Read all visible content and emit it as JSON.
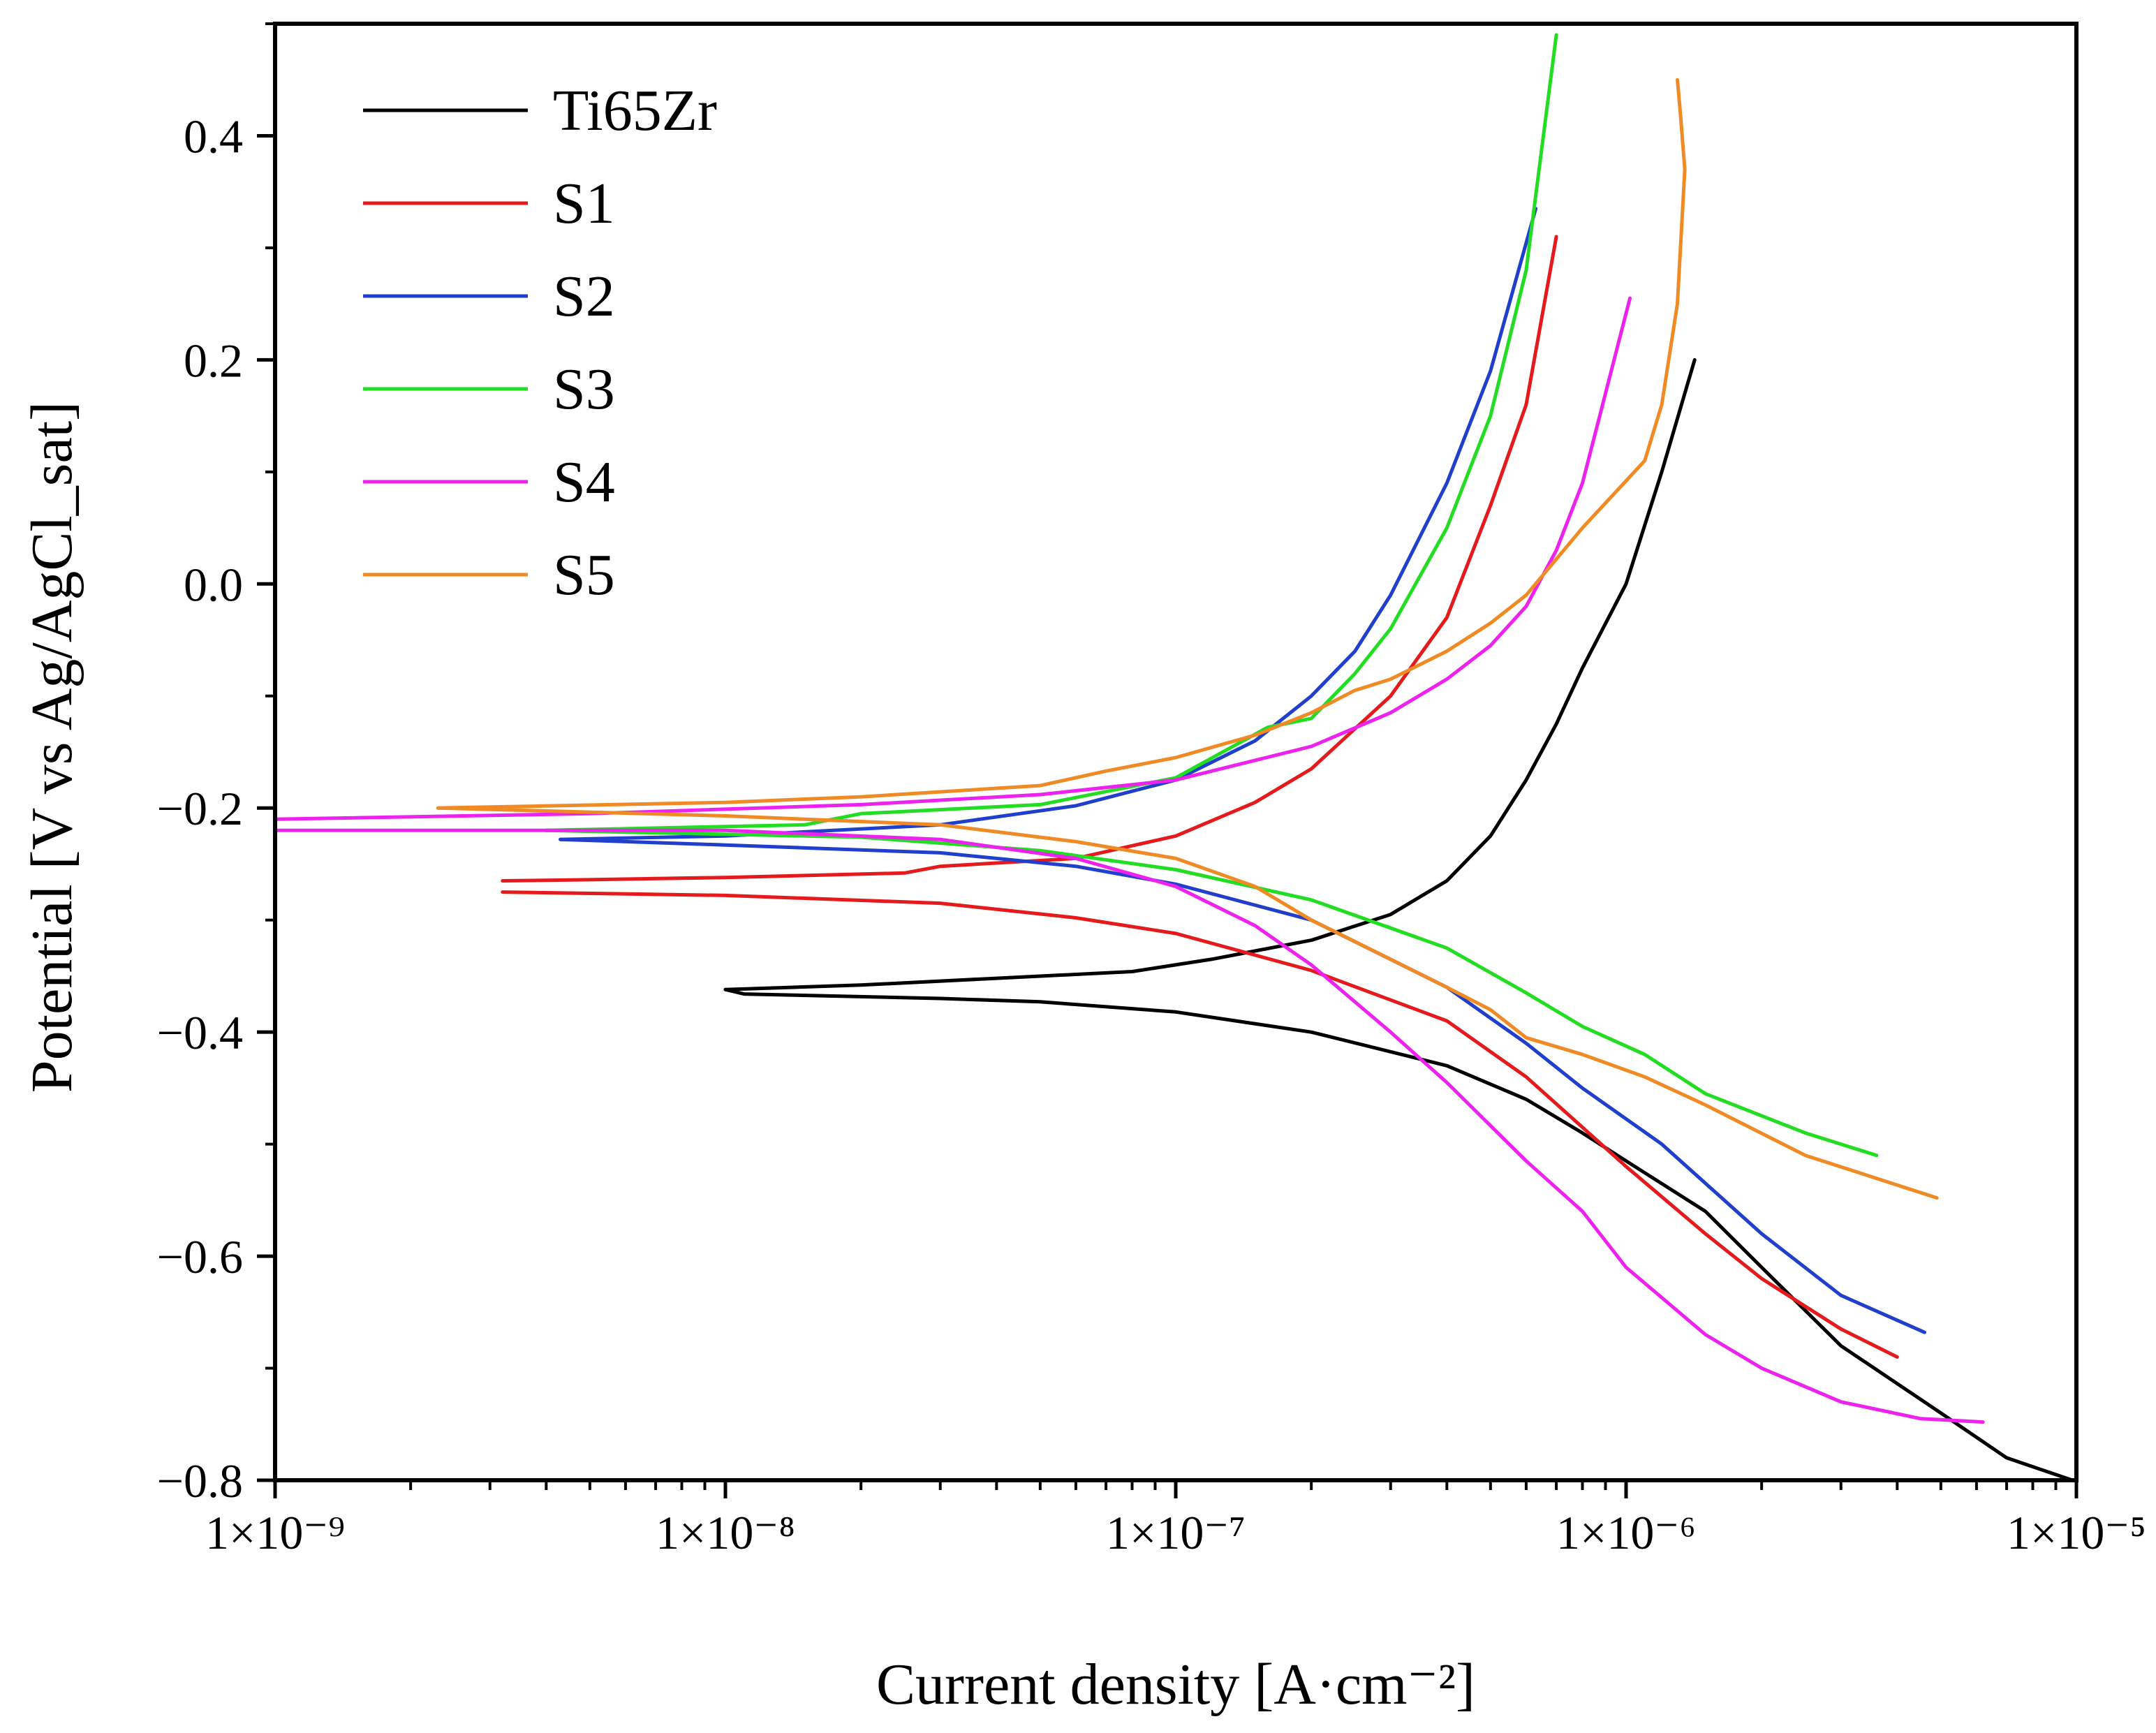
{
  "chart_data": {
    "type": "line",
    "title": "",
    "xlabel": "Current density [A·cm⁻²]",
    "ylabel": "Potential [V vs Ag/AgCl_sat]",
    "x_scale": "log",
    "xlim": [
      1e-09,
      1e-05
    ],
    "ylim": [
      -0.8,
      0.5
    ],
    "x_ticks": [
      {
        "value": 1e-09,
        "label": "1×10⁻⁹"
      },
      {
        "value": 1e-08,
        "label": "1×10⁻⁸"
      },
      {
        "value": 1e-07,
        "label": "1×10⁻⁷"
      },
      {
        "value": 1e-06,
        "label": "1×10⁻⁶"
      },
      {
        "value": 1e-05,
        "label": "1×10⁻⁵"
      }
    ],
    "y_ticks": [
      {
        "value": 0.4,
        "label": "0.4"
      },
      {
        "value": 0.2,
        "label": "0.2"
      },
      {
        "value": 0.0,
        "label": "0.0"
      },
      {
        "value": -0.2,
        "label": "−0.2"
      },
      {
        "value": -0.4,
        "label": "−0.4"
      },
      {
        "value": -0.6,
        "label": "−0.6"
      },
      {
        "value": -0.8,
        "label": "−0.8"
      }
    ],
    "grid": false,
    "legend_position": "top-left",
    "series": [
      {
        "name": "Ti65Zr",
        "color": "#000000",
        "anodic": [
          [
            1e-08,
            -0.362
          ],
          [
            2e-08,
            -0.358
          ],
          [
            4e-08,
            -0.352
          ],
          [
            8e-08,
            -0.346
          ],
          [
            1.2e-07,
            -0.335
          ],
          [
            2e-07,
            -0.318
          ],
          [
            3e-07,
            -0.295
          ],
          [
            4e-07,
            -0.265
          ],
          [
            5e-07,
            -0.225
          ],
          [
            6e-07,
            -0.175
          ],
          [
            7e-07,
            -0.125
          ],
          [
            8e-07,
            -0.075
          ],
          [
            1e-06,
            0.0
          ],
          [
            1.2e-06,
            0.1
          ],
          [
            1.42e-06,
            0.2
          ]
        ],
        "cathodic": [
          [
            1e-08,
            -0.362
          ],
          [
            1.1e-08,
            -0.366
          ],
          [
            3e-08,
            -0.37
          ],
          [
            5e-08,
            -0.373
          ],
          [
            1e-07,
            -0.382
          ],
          [
            2e-07,
            -0.4
          ],
          [
            4e-07,
            -0.43
          ],
          [
            6e-07,
            -0.46
          ],
          [
            8e-07,
            -0.49
          ],
          [
            1e-06,
            -0.515
          ],
          [
            1.5e-06,
            -0.56
          ],
          [
            2e-06,
            -0.61
          ],
          [
            3e-06,
            -0.68
          ],
          [
            5e-06,
            -0.74
          ],
          [
            7e-06,
            -0.78
          ],
          [
            9.8e-06,
            -0.8
          ]
        ]
      },
      {
        "name": "S1",
        "color": "#e41a1c",
        "anodic": [
          [
            3.2e-09,
            -0.265
          ],
          [
            5e-09,
            -0.264
          ],
          [
            1e-08,
            -0.262
          ],
          [
            2.5e-08,
            -0.258
          ],
          [
            3e-08,
            -0.252
          ],
          [
            6e-08,
            -0.245
          ],
          [
            1e-07,
            -0.225
          ],
          [
            1.5e-07,
            -0.195
          ],
          [
            2e-07,
            -0.165
          ],
          [
            3e-07,
            -0.1
          ],
          [
            4e-07,
            -0.03
          ],
          [
            5e-07,
            0.07
          ],
          [
            6e-07,
            0.16
          ],
          [
            7e-07,
            0.31
          ]
        ],
        "cathodic": [
          [
            3.2e-09,
            -0.275
          ],
          [
            1e-08,
            -0.278
          ],
          [
            3e-08,
            -0.285
          ],
          [
            6e-08,
            -0.298
          ],
          [
            1e-07,
            -0.312
          ],
          [
            2e-07,
            -0.345
          ],
          [
            4e-07,
            -0.39
          ],
          [
            6e-07,
            -0.44
          ],
          [
            8e-07,
            -0.485
          ],
          [
            1e-06,
            -0.52
          ],
          [
            1.5e-06,
            -0.58
          ],
          [
            2e-06,
            -0.62
          ],
          [
            3e-06,
            -0.665
          ],
          [
            4e-06,
            -0.69
          ]
        ]
      },
      {
        "name": "S2",
        "color": "#1f3fcc",
        "anodic": [
          [
            4.3e-09,
            -0.228
          ],
          [
            1e-08,
            -0.225
          ],
          [
            3e-08,
            -0.215
          ],
          [
            6e-08,
            -0.198
          ],
          [
            1e-07,
            -0.175
          ],
          [
            1.5e-07,
            -0.14
          ],
          [
            2e-07,
            -0.1
          ],
          [
            2.5e-07,
            -0.06
          ],
          [
            3e-07,
            -0.01
          ],
          [
            4e-07,
            0.09
          ],
          [
            5e-07,
            0.19
          ],
          [
            6.3e-07,
            0.335
          ]
        ],
        "cathodic": [
          [
            4.3e-09,
            -0.228
          ],
          [
            1e-08,
            -0.233
          ],
          [
            3e-08,
            -0.24
          ],
          [
            6e-08,
            -0.252
          ],
          [
            1e-07,
            -0.268
          ],
          [
            2e-07,
            -0.3
          ],
          [
            4e-07,
            -0.36
          ],
          [
            6e-07,
            -0.41
          ],
          [
            8e-07,
            -0.45
          ],
          [
            1.2e-06,
            -0.5
          ],
          [
            2e-06,
            -0.58
          ],
          [
            3e-06,
            -0.635
          ],
          [
            4.6e-06,
            -0.668
          ]
        ]
      },
      {
        "name": "S3",
        "color": "#22dd22",
        "anodic": [
          [
            4e-09,
            -0.22
          ],
          [
            1.5e-08,
            -0.215
          ],
          [
            2e-08,
            -0.205
          ],
          [
            5e-08,
            -0.197
          ],
          [
            1e-07,
            -0.173
          ],
          [
            1.6e-07,
            -0.128
          ],
          [
            2e-07,
            -0.12
          ],
          [
            2.5e-07,
            -0.08
          ],
          [
            3e-07,
            -0.04
          ],
          [
            4e-07,
            0.05
          ],
          [
            5e-07,
            0.15
          ],
          [
            6e-07,
            0.28
          ],
          [
            7e-07,
            0.49
          ]
        ],
        "cathodic": [
          [
            4e-09,
            -0.22
          ],
          [
            2e-08,
            -0.226
          ],
          [
            5e-08,
            -0.238
          ],
          [
            1e-07,
            -0.255
          ],
          [
            2e-07,
            -0.282
          ],
          [
            4e-07,
            -0.325
          ],
          [
            6e-07,
            -0.365
          ],
          [
            8e-07,
            -0.395
          ],
          [
            1.1e-06,
            -0.42
          ],
          [
            1.5e-06,
            -0.455
          ],
          [
            2.5e-06,
            -0.49
          ],
          [
            3.6e-06,
            -0.51
          ]
        ]
      },
      {
        "name": "S4",
        "color": "#ee22ee",
        "anodic": [
          [
            1e-09,
            -0.21
          ],
          [
            5e-09,
            -0.205
          ],
          [
            2e-08,
            -0.197
          ],
          [
            5e-08,
            -0.188
          ],
          [
            1e-07,
            -0.175
          ],
          [
            2e-07,
            -0.145
          ],
          [
            3e-07,
            -0.115
          ],
          [
            4e-07,
            -0.085
          ],
          [
            5e-07,
            -0.055
          ],
          [
            6e-07,
            -0.02
          ],
          [
            7e-07,
            0.03
          ],
          [
            8e-07,
            0.09
          ],
          [
            9e-07,
            0.17
          ],
          [
            1.02e-06,
            0.255
          ]
        ],
        "cathodic": [
          [
            1e-09,
            -0.22
          ],
          [
            1e-08,
            -0.22
          ],
          [
            3e-08,
            -0.228
          ],
          [
            6e-08,
            -0.245
          ],
          [
            1e-07,
            -0.27
          ],
          [
            1.5e-07,
            -0.305
          ],
          [
            2e-07,
            -0.34
          ],
          [
            3e-07,
            -0.4
          ],
          [
            4e-07,
            -0.445
          ],
          [
            6e-07,
            -0.515
          ],
          [
            8e-07,
            -0.56
          ],
          [
            1e-06,
            -0.61
          ],
          [
            1.5e-06,
            -0.67
          ],
          [
            2e-06,
            -0.7
          ],
          [
            3e-06,
            -0.73
          ],
          [
            4.5e-06,
            -0.745
          ],
          [
            6.2e-06,
            -0.748
          ]
        ]
      },
      {
        "name": "S5",
        "color": "#f08a24",
        "anodic": [
          [
            2.3e-09,
            -0.2
          ],
          [
            1e-08,
            -0.195
          ],
          [
            2e-08,
            -0.19
          ],
          [
            5e-08,
            -0.18
          ],
          [
            7e-08,
            -0.167
          ],
          [
            1e-07,
            -0.155
          ],
          [
            1.5e-07,
            -0.135
          ],
          [
            2e-07,
            -0.115
          ],
          [
            2.5e-07,
            -0.095
          ],
          [
            3e-07,
            -0.085
          ],
          [
            4e-07,
            -0.06
          ],
          [
            5e-07,
            -0.035
          ],
          [
            6e-07,
            -0.01
          ],
          [
            8e-07,
            0.05
          ],
          [
            1.1e-06,
            0.11
          ],
          [
            1.2e-06,
            0.16
          ],
          [
            1.3e-06,
            0.25
          ],
          [
            1.35e-06,
            0.37
          ],
          [
            1.32e-06,
            0.42
          ],
          [
            1.3e-06,
            0.45
          ]
        ],
        "cathodic": [
          [
            2.3e-09,
            -0.2
          ],
          [
            1e-08,
            -0.207
          ],
          [
            3e-08,
            -0.215
          ],
          [
            6e-08,
            -0.23
          ],
          [
            1e-07,
            -0.245
          ],
          [
            1.5e-07,
            -0.27
          ],
          [
            2e-07,
            -0.3
          ],
          [
            3e-07,
            -0.335
          ],
          [
            4e-07,
            -0.36
          ],
          [
            5e-07,
            -0.38
          ],
          [
            6e-07,
            -0.405
          ],
          [
            8e-07,
            -0.42
          ],
          [
            1.1e-06,
            -0.44
          ],
          [
            1.5e-06,
            -0.465
          ],
          [
            2.5e-06,
            -0.51
          ],
          [
            4.9e-06,
            -0.548
          ]
        ]
      }
    ]
  }
}
